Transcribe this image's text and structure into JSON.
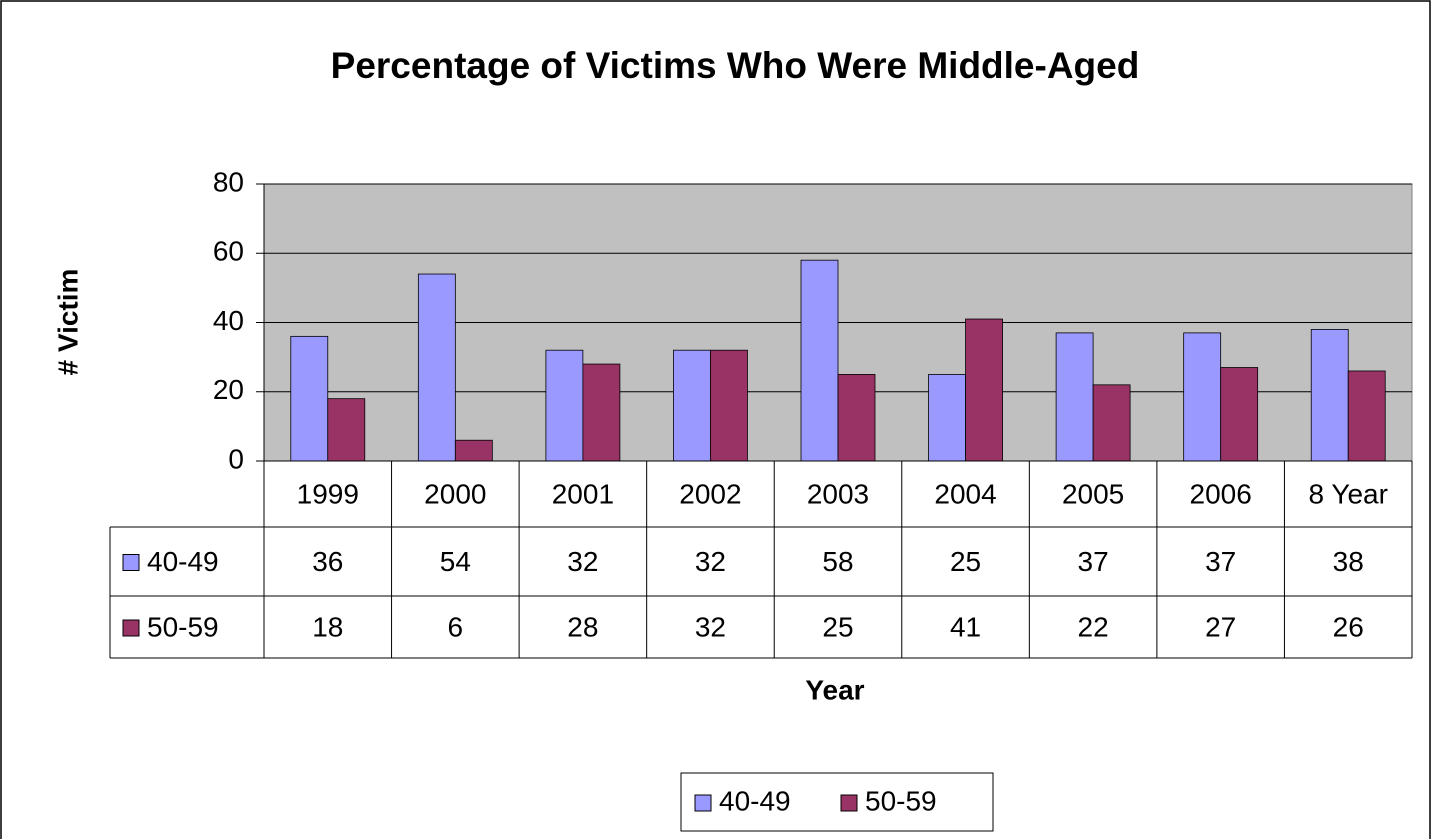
{
  "chart_data": {
    "type": "bar",
    "title": "Percentage of Victims Who Were Middle-Aged",
    "x_label": "Year",
    "y_label": "# Victim",
    "categories": [
      "1999",
      "2000",
      "2001",
      "2002",
      "2003",
      "2004",
      "2005",
      "2006",
      "8 Year"
    ],
    "series": [
      {
        "name": "40-49",
        "color": "#9999ff",
        "values": [
          36,
          54,
          32,
          32,
          58,
          25,
          37,
          37,
          38
        ]
      },
      {
        "name": "50-59",
        "color": "#993366",
        "values": [
          18,
          6,
          28,
          32,
          25,
          41,
          22,
          27,
          26
        ]
      }
    ],
    "ylim": [
      0,
      80
    ],
    "yticks": [
      0,
      20,
      40,
      60,
      80
    ],
    "grid": true,
    "legend": "bottom",
    "data_table": true
  }
}
